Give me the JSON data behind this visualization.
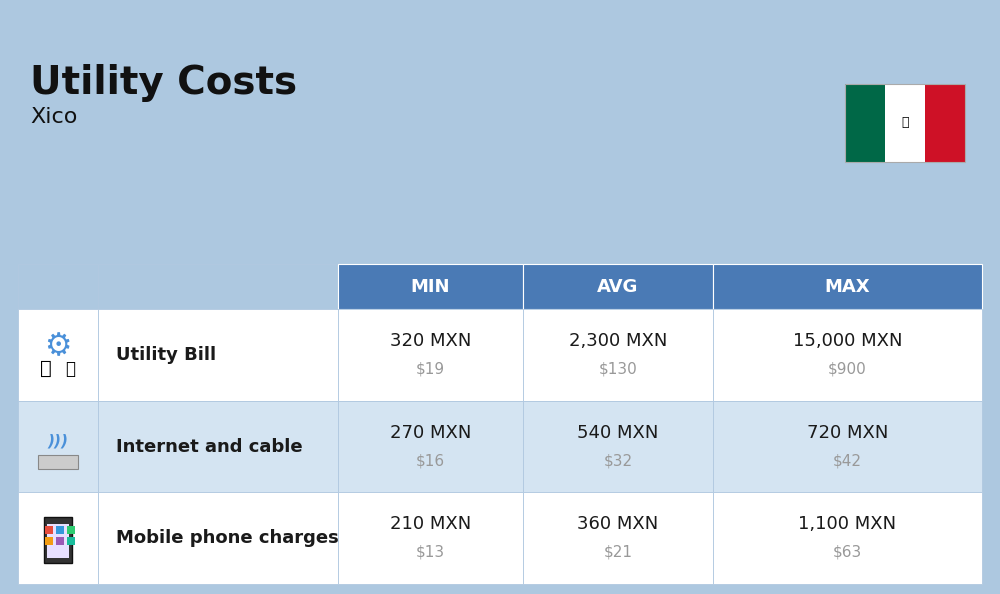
{
  "title": "Utility Costs",
  "subtitle": "Xico",
  "background_color": "#adc8e0",
  "header_bg_color": "#4a7ab5",
  "header_text_color": "#ffffff",
  "row_bg_color_odd": "#ffffff",
  "row_bg_color_even": "#d4e4f2",
  "cell_text_color": "#1a1a1a",
  "usd_text_color": "#999999",
  "border_color": "#b0c8e0",
  "flag_green": "#006847",
  "flag_white": "#ffffff",
  "flag_red": "#ce1126",
  "rows": [
    {
      "label": "Utility Bill",
      "min_mxn": "320 MXN",
      "min_usd": "$19",
      "avg_mxn": "2,300 MXN",
      "avg_usd": "$130",
      "max_mxn": "15,000 MXN",
      "max_usd": "$900"
    },
    {
      "label": "Internet and cable",
      "min_mxn": "270 MXN",
      "min_usd": "$16",
      "avg_mxn": "540 MXN",
      "avg_usd": "$32",
      "max_mxn": "720 MXN",
      "max_usd": "$42"
    },
    {
      "label": "Mobile phone charges",
      "min_mxn": "210 MXN",
      "min_usd": "$13",
      "avg_mxn": "360 MXN",
      "avg_usd": "$21",
      "max_mxn": "1,100 MXN",
      "max_usd": "$63"
    }
  ]
}
